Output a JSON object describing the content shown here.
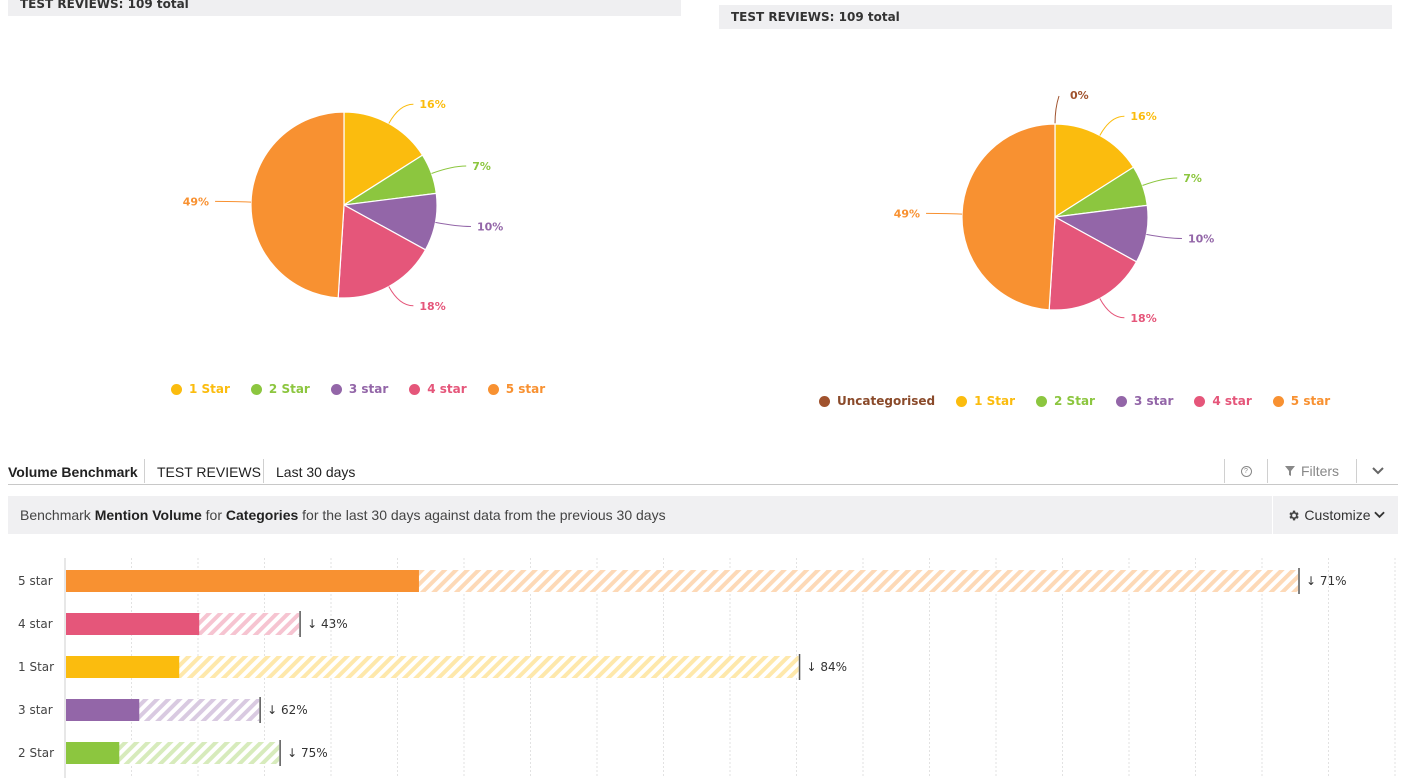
{
  "panels": {
    "left": {
      "header": "TEST REVIEWS: 109 total",
      "slices": [
        {
          "name": "1 Star",
          "percent": 16,
          "label": "16%",
          "color": "#fbbc0e"
        },
        {
          "name": "2 Star",
          "percent": 7,
          "label": "7%",
          "color": "#8cc63f"
        },
        {
          "name": "3 star",
          "percent": 10,
          "label": "10%",
          "color": "#9366a8"
        },
        {
          "name": "4 star",
          "percent": 18,
          "label": "18%",
          "color": "#e5567a"
        },
        {
          "name": "5 star",
          "percent": 49,
          "label": "49%",
          "color": "#f89131"
        }
      ],
      "legend": [
        {
          "name": "1 Star",
          "color": "#fbbc0e"
        },
        {
          "name": "2 Star",
          "color": "#8cc63f"
        },
        {
          "name": "3 star",
          "color": "#9366a8"
        },
        {
          "name": "4 star",
          "color": "#e5567a"
        },
        {
          "name": "5 star",
          "color": "#f89131"
        }
      ]
    },
    "right": {
      "header": "TEST REVIEWS: 109 total",
      "slices": [
        {
          "name": "Uncategorised",
          "percent": 0,
          "label": "0%",
          "color": "#a0522d"
        },
        {
          "name": "1 Star",
          "percent": 16,
          "label": "16%",
          "color": "#fbbc0e"
        },
        {
          "name": "2 Star",
          "percent": 7,
          "label": "7%",
          "color": "#8cc63f"
        },
        {
          "name": "3 star",
          "percent": 10,
          "label": "10%",
          "color": "#9366a8"
        },
        {
          "name": "4 star",
          "percent": 18,
          "label": "18%",
          "color": "#e5567a"
        },
        {
          "name": "5 star",
          "percent": 49,
          "label": "49%",
          "color": "#f89131"
        }
      ],
      "legend": [
        {
          "name": "Uncategorised",
          "color": "#a0522d"
        },
        {
          "name": "1 Star",
          "color": "#fbbc0e"
        },
        {
          "name": "2 Star",
          "color": "#8cc63f"
        },
        {
          "name": "3 star",
          "color": "#9366a8"
        },
        {
          "name": "4 star",
          "color": "#e5567a"
        },
        {
          "name": "5 star",
          "color": "#f89131"
        }
      ]
    }
  },
  "toolbar": {
    "title": "Volume Benchmark",
    "source": "TEST REVIEWS",
    "period": "Last 30 days",
    "help_icon": "help-circle-icon",
    "filters_label": "Filters",
    "collapse_icon": "chevron-down-icon"
  },
  "benchmark": {
    "prefix": "Benchmark ",
    "metric": "Mention Volume",
    "mid": " for ",
    "dimension": "Categories",
    "suffix": " for the last 30 days against data from the previous 30 days",
    "customize_label": "Customize"
  },
  "chart_data": {
    "type": "bar",
    "orientation": "horizontal",
    "categories": [
      "5 star",
      "4 star",
      "1 Star",
      "3 star",
      "2 Star"
    ],
    "series": [
      {
        "name": "Last 30 days",
        "values": [
          53,
          20,
          17,
          11,
          8
        ]
      },
      {
        "name": "Previous 30 days",
        "values": [
          185,
          35,
          110,
          29,
          32
        ]
      }
    ],
    "changes": [
      "↓ 71%",
      "↓ 43%",
      "↓ 84%",
      "↓ 62%",
      "↓ 75%"
    ],
    "colors": [
      "#f89131",
      "#e5567a",
      "#fbbc0e",
      "#9366a8",
      "#8cc63f"
    ],
    "grid": true,
    "xlim": [
      0,
      200
    ]
  }
}
